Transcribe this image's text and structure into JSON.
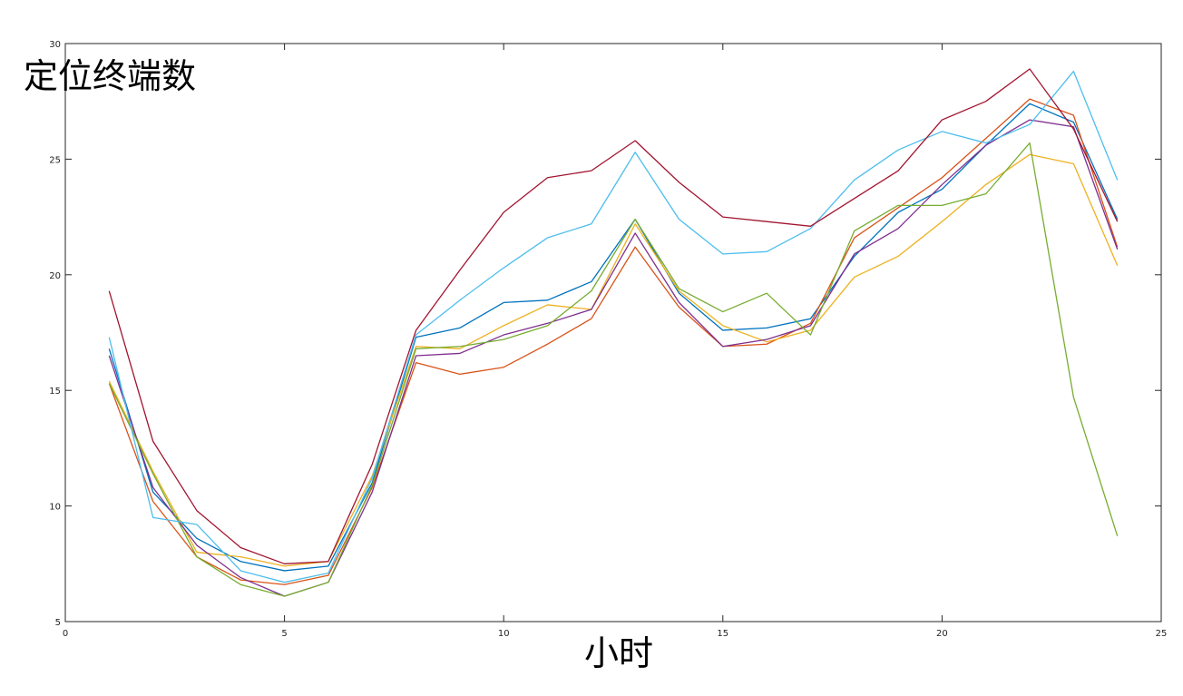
{
  "chart_data": {
    "type": "line",
    "title": "",
    "ylabel": "定位终端数",
    "xlabel": "小时",
    "xlim": [
      0,
      25
    ],
    "ylim": [
      5,
      30
    ],
    "xticks": [
      0,
      5,
      10,
      15,
      20,
      25
    ],
    "yticks": [
      5,
      10,
      15,
      20,
      25,
      30
    ],
    "grid": false,
    "legend": "none",
    "x": [
      1,
      2,
      3,
      4,
      5,
      6,
      7,
      8,
      9,
      10,
      11,
      12,
      13,
      14,
      15,
      16,
      17,
      18,
      19,
      20,
      21,
      22,
      23,
      24
    ],
    "series": [
      {
        "color": "#0072BD",
        "values": [
          16.8,
          10.6,
          8.6,
          7.6,
          7.2,
          7.4,
          11.0,
          17.3,
          17.7,
          18.8,
          18.9,
          19.7,
          22.4,
          19.2,
          17.6,
          17.7,
          18.1,
          20.8,
          22.7,
          23.7,
          25.6,
          27.4,
          26.6,
          22.4
        ]
      },
      {
        "color": "#D95319",
        "values": [
          15.3,
          10.2,
          7.8,
          6.8,
          6.6,
          7.0,
          10.8,
          16.2,
          15.7,
          16.0,
          17.0,
          18.1,
          21.2,
          18.6,
          16.9,
          17.0,
          17.9,
          21.6,
          22.9,
          24.2,
          25.9,
          27.6,
          26.9,
          21.2
        ]
      },
      {
        "color": "#EDB120",
        "values": [
          15.4,
          11.5,
          8.0,
          7.8,
          7.4,
          7.6,
          11.3,
          16.9,
          16.8,
          17.8,
          18.7,
          18.5,
          22.2,
          19.3,
          17.8,
          17.1,
          17.6,
          19.9,
          20.8,
          22.3,
          23.9,
          25.2,
          24.8,
          20.4
        ]
      },
      {
        "color": "#7E2F8E",
        "values": [
          16.5,
          10.8,
          8.3,
          6.9,
          6.1,
          6.7,
          10.6,
          16.5,
          16.6,
          17.4,
          17.9,
          18.5,
          21.8,
          18.8,
          16.9,
          17.2,
          17.8,
          20.9,
          22.0,
          23.9,
          25.6,
          26.7,
          26.4,
          21.1
        ]
      },
      {
        "color": "#77AC30",
        "values": [
          15.3,
          11.4,
          7.8,
          6.6,
          6.1,
          6.7,
          10.9,
          16.8,
          16.9,
          17.2,
          17.8,
          19.3,
          22.4,
          19.4,
          18.4,
          19.2,
          17.4,
          21.9,
          23.0,
          23.0,
          23.5,
          25.7,
          14.7,
          8.7
        ]
      },
      {
        "color": "#4DBEEE",
        "values": [
          17.3,
          9.5,
          9.2,
          7.2,
          6.7,
          7.1,
          11.2,
          17.4,
          18.9,
          20.3,
          21.6,
          22.2,
          25.3,
          22.4,
          20.9,
          21.0,
          22.0,
          24.1,
          25.4,
          26.2,
          25.7,
          26.5,
          28.8,
          24.1
        ]
      },
      {
        "color": "#A2142F",
        "values": [
          19.3,
          12.8,
          9.8,
          8.2,
          7.5,
          7.6,
          11.8,
          17.6,
          20.2,
          22.7,
          24.2,
          24.5,
          25.8,
          24.0,
          22.5,
          22.3,
          22.1,
          23.3,
          24.5,
          26.7,
          27.5,
          28.9,
          26.3,
          22.3
        ]
      }
    ]
  }
}
